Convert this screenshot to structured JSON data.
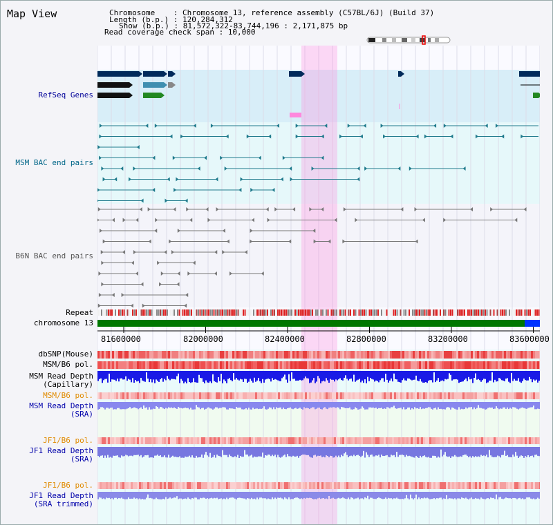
{
  "title": "Map View",
  "info": {
    "line1": "Chromosome    : Chromosome 13, reference assembly (C57BL/6J) (Build 37)",
    "line2": "Length (b.p.) : 120,284,312",
    "line3": "Show (b.p.) : 81,572,322-83,744,196 : 2,171,875 bp",
    "line4": "Read coverage check span : 10,000"
  },
  "tracks": {
    "refseq": "RefSeq Genes",
    "msm_bac": "MSM BAC end pairs",
    "b6n_bac": "B6N BAC end pairs",
    "repeat": "Repeat",
    "chromosome": "chromosome 13",
    "dbsnp": "dbSNP(Mouse)",
    "msm_pol": "MSM/B6 pol.",
    "msm_depth_cap_1": "MSM Read Depth",
    "msm_depth_cap_2": "(Capillary)",
    "msm_pol2": "MSM/B6 pol.",
    "msm_depth_sra_1": "MSM Read Depth",
    "msm_depth_sra_2": "(SRA)",
    "jf1_pol": "JF1/B6 pol.",
    "jf1_depth_sra_1": "JF1 Read Depth",
    "jf1_depth_sra_2": "(SRA)",
    "jf1_pol2": "JF1/B6 pol.",
    "jf1_depth_trim_1": "JF1 Read Depth",
    "jf1_depth_trim_2": "(SRA trimmed)"
  },
  "axis": {
    "ticks": [
      "81600000",
      "82000000",
      "82400000",
      "82800000",
      "83200000",
      "83600000"
    ]
  },
  "colors": {
    "refseq_label": "#000099",
    "msm_label": "#006688",
    "b6n_label": "#555555",
    "gene_navy": "#002a5a",
    "gene_teal": "#3f8fb0",
    "gene_green": "#228822",
    "bac_teal": "#1f7a8c",
    "bac_gray": "#777777",
    "chromosome": "#007700",
    "chrom_end": "#0033ff",
    "highlight": "#ff88dd",
    "pol_label": "#e08a00",
    "depth_label": "#0000aa"
  }
}
